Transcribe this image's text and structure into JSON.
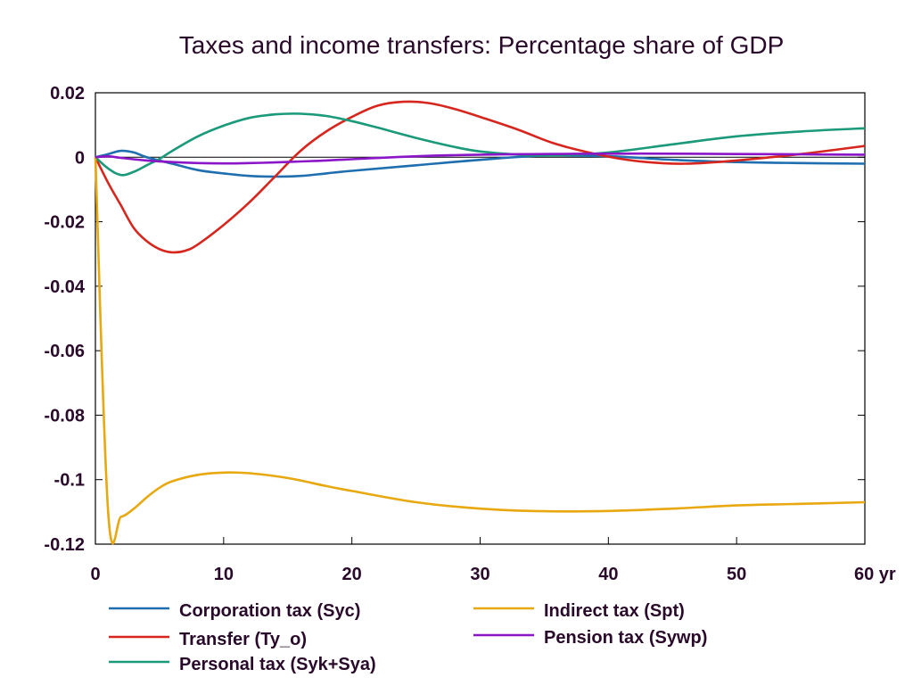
{
  "chart_data": {
    "type": "line",
    "title": "Taxes and income transfers: Percentage share of GDP",
    "xlabel": "",
    "ylabel": "",
    "x_unit_label": "yr",
    "xlim": [
      0,
      60
    ],
    "ylim": [
      -0.12,
      0.02
    ],
    "xticks": [
      0,
      10,
      20,
      30,
      40,
      50,
      60
    ],
    "xtick_labels": [
      "0",
      "10",
      "20",
      "30",
      "40",
      "50",
      "60 yr"
    ],
    "yticks": [
      0.02,
      0,
      -0.02,
      -0.04,
      -0.06,
      -0.08,
      -0.1,
      -0.12
    ],
    "ytick_labels": [
      "0.02",
      "0",
      "-0.02",
      "-0.04",
      "-0.06",
      "-0.08",
      "-0.1",
      "-0.12"
    ],
    "grid": false,
    "zero_line": true,
    "legend_position": "bottom",
    "series": [
      {
        "name": "Corporation tax (Syc)",
        "color": "#1f6fb0",
        "points": [
          [
            0,
            0
          ],
          [
            1,
            0.001
          ],
          [
            2,
            0.002
          ],
          [
            3,
            0.0015
          ],
          [
            4,
            0
          ],
          [
            6,
            -0.002
          ],
          [
            8,
            -0.004
          ],
          [
            10,
            -0.005
          ],
          [
            12,
            -0.0058
          ],
          [
            14,
            -0.006
          ],
          [
            16,
            -0.0058
          ],
          [
            18,
            -0.005
          ],
          [
            20,
            -0.0042
          ],
          [
            25,
            -0.0025
          ],
          [
            30,
            -0.0008
          ],
          [
            35,
            0.0005
          ],
          [
            40,
            0.0003
          ],
          [
            45,
            -0.0008
          ],
          [
            50,
            -0.0015
          ],
          [
            55,
            -0.0018
          ],
          [
            60,
            -0.002
          ]
        ]
      },
      {
        "name": "Transfer (Ty_o)",
        "color": "#d7261e",
        "points": [
          [
            0,
            0
          ],
          [
            1,
            -0.008
          ],
          [
            2,
            -0.015
          ],
          [
            3,
            -0.022
          ],
          [
            4,
            -0.026
          ],
          [
            5,
            -0.0285
          ],
          [
            6,
            -0.0295
          ],
          [
            7,
            -0.029
          ],
          [
            8,
            -0.027
          ],
          [
            10,
            -0.021
          ],
          [
            12,
            -0.014
          ],
          [
            14,
            -0.006
          ],
          [
            16,
            0.002
          ],
          [
            18,
            0.008
          ],
          [
            20,
            0.0125
          ],
          [
            22,
            0.016
          ],
          [
            24,
            0.0172
          ],
          [
            26,
            0.0168
          ],
          [
            28,
            0.015
          ],
          [
            30,
            0.0125
          ],
          [
            33,
            0.0085
          ],
          [
            36,
            0.004
          ],
          [
            40,
            0.0002
          ],
          [
            43,
            -0.0015
          ],
          [
            46,
            -0.002
          ],
          [
            50,
            -0.001
          ],
          [
            55,
            0.001
          ],
          [
            60,
            0.0035
          ]
        ]
      },
      {
        "name": "Personal tax (Syk+Sya)",
        "color": "#1a9a7a",
        "points": [
          [
            0,
            0
          ],
          [
            1,
            -0.0035
          ],
          [
            2,
            -0.0055
          ],
          [
            3,
            -0.0045
          ],
          [
            4,
            -0.0025
          ],
          [
            5,
            -0.0005
          ],
          [
            6,
            0.002
          ],
          [
            8,
            0.0065
          ],
          [
            10,
            0.0098
          ],
          [
            12,
            0.0122
          ],
          [
            14,
            0.0133
          ],
          [
            16,
            0.0135
          ],
          [
            18,
            0.0128
          ],
          [
            20,
            0.0112
          ],
          [
            22,
            0.0092
          ],
          [
            25,
            0.006
          ],
          [
            28,
            0.0032
          ],
          [
            30,
            0.0018
          ],
          [
            33,
            0.0008
          ],
          [
            36,
            0.0006
          ],
          [
            40,
            0.0015
          ],
          [
            45,
            0.004
          ],
          [
            50,
            0.0065
          ],
          [
            55,
            0.008
          ],
          [
            60,
            0.009
          ]
        ]
      },
      {
        "name": "Indirect tax (Spt)",
        "color": "#e8a810",
        "points": [
          [
            0,
            0
          ],
          [
            1,
            -0.1105
          ],
          [
            2,
            -0.1115
          ],
          [
            3,
            -0.109
          ],
          [
            4,
            -0.1055
          ],
          [
            5,
            -0.1025
          ],
          [
            6,
            -0.1005
          ],
          [
            8,
            -0.0985
          ],
          [
            10,
            -0.0978
          ],
          [
            12,
            -0.098
          ],
          [
            15,
            -0.0995
          ],
          [
            18,
            -0.102
          ],
          [
            20,
            -0.1035
          ],
          [
            25,
            -0.107
          ],
          [
            30,
            -0.109
          ],
          [
            35,
            -0.1098
          ],
          [
            40,
            -0.1097
          ],
          [
            45,
            -0.109
          ],
          [
            50,
            -0.108
          ],
          [
            55,
            -0.1075
          ],
          [
            60,
            -0.107
          ]
        ]
      },
      {
        "name": "Pension tax (Sywp)",
        "color": "#8a16c8",
        "points": [
          [
            0,
            0
          ],
          [
            1,
            0.0003
          ],
          [
            2,
            -0.0002
          ],
          [
            4,
            -0.001
          ],
          [
            6,
            -0.0015
          ],
          [
            8,
            -0.0018
          ],
          [
            10,
            -0.0019
          ],
          [
            12,
            -0.0018
          ],
          [
            14,
            -0.0016
          ],
          [
            16,
            -0.0013
          ],
          [
            18,
            -0.001
          ],
          [
            20,
            -0.0006
          ],
          [
            25,
            0.0003
          ],
          [
            30,
            0.0008
          ],
          [
            35,
            0.001
          ],
          [
            40,
            0.0011
          ],
          [
            45,
            0.0011
          ],
          [
            50,
            0.001
          ],
          [
            55,
            0.0009
          ],
          [
            60,
            0.0008
          ]
        ]
      }
    ]
  }
}
